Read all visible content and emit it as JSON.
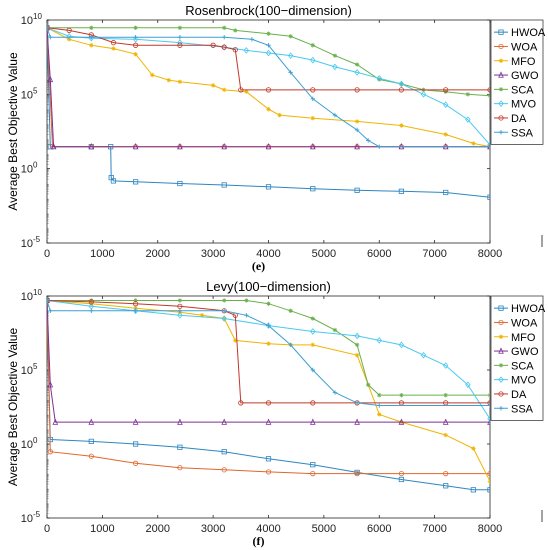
{
  "figure": {
    "labels": [
      "(e)",
      "(f)"
    ]
  },
  "chart_data": [
    {
      "type": "line",
      "title": "Rosenbrock(100−dimension)",
      "xlabel": "",
      "ylabel": "Average Best Objective Value",
      "xlim": [
        0,
        8000
      ],
      "ylim": [
        1e-05,
        10000000000.0
      ],
      "yscale": "log",
      "xticks": [
        "0",
        "1000",
        "2000",
        "3000",
        "4000",
        "5000",
        "6000",
        "7000",
        "8000"
      ],
      "yticks": [
        {
          "base": "10",
          "exp": "10"
        },
        {
          "base": "10",
          "exp": "5"
        },
        {
          "base": "10",
          "exp": "0"
        },
        {
          "base": "10",
          "exp": "-5"
        }
      ],
      "legend": "right",
      "series": [
        {
          "name": "HWOA",
          "color": "#2e86c1",
          "marker": "square",
          "x": [
            0,
            60,
            800,
            1150,
            1160,
            1200,
            1600,
            2400,
            3200,
            4000,
            4800,
            5600,
            6400,
            7200,
            8000
          ],
          "y": [
            3000000000.0,
            30,
            30,
            30,
            0.25,
            0.15,
            0.13,
            0.1,
            0.08,
            0.06,
            0.045,
            0.035,
            0.03,
            0.025,
            0.012
          ]
        },
        {
          "name": "WOA",
          "color": "#e0662c",
          "marker": "circle",
          "x": [
            0,
            100,
            800,
            1600,
            2400,
            3200,
            4000,
            4800,
            5600,
            6400,
            7200,
            8000
          ],
          "y": [
            3000000000.0,
            30,
            30,
            30,
            30,
            30,
            30,
            30,
            30,
            30,
            30,
            30
          ]
        },
        {
          "name": "MFO",
          "color": "#f0b400",
          "marker": "star",
          "x": [
            0,
            400,
            800,
            1200,
            1600,
            1900,
            2200,
            2400,
            3000,
            3200,
            3600,
            4000,
            4200,
            4800,
            5600,
            6400,
            7200,
            7700,
            8000
          ],
          "y": [
            3000000000.0,
            500000000.0,
            200000000.0,
            120000000.0,
            50000000.0,
            2000000.0,
            900000.0,
            700000.0,
            400000.0,
            200000.0,
            150000.0,
            10000.0,
            4000,
            2500,
            1500,
            800,
            200,
            50,
            30
          ]
        },
        {
          "name": "GWO",
          "color": "#7b3294",
          "marker": "triangle",
          "x": [
            0,
            60,
            120,
            800,
            1600,
            2400,
            3200,
            4000,
            4800,
            5600,
            6400,
            7200,
            8000
          ],
          "y": [
            3000000000.0,
            1000000.0,
            30,
            30,
            30,
            30,
            30,
            30,
            30,
            30,
            30,
            30,
            30
          ]
        },
        {
          "name": "SCA",
          "color": "#6ab04c",
          "marker": "star",
          "x": [
            0,
            800,
            1600,
            2400,
            3200,
            3400,
            4000,
            4400,
            4800,
            5200,
            5600,
            6000,
            6400,
            6800,
            7200,
            7600,
            8000
          ],
          "y": [
            3000000000.0,
            3000000000.0,
            3000000000.0,
            3000000000.0,
            3000000000.0,
            2000000000.0,
            1200000000.0,
            800000000.0,
            200000000.0,
            40000000.0,
            10000000.0,
            1000000.0,
            500000.0,
            200000.0,
            150000.0,
            100000.0,
            80000.0
          ]
        },
        {
          "name": "MVO",
          "color": "#48c9f0",
          "marker": "diamond",
          "x": [
            0,
            400,
            800,
            1600,
            2400,
            3200,
            3600,
            4000,
            4400,
            4800,
            5200,
            5600,
            6000,
            6400,
            6800,
            7200,
            7600,
            8000
          ],
          "y": [
            3000000000.0,
            800000000.0,
            600000000.0,
            500000000.0,
            300000000.0,
            150000000.0,
            90000000.0,
            60000000.0,
            40000000.0,
            20000000.0,
            7000000.0,
            3000000.0,
            1200000.0,
            500000.0,
            100000.0,
            20000.0,
            2000,
            40
          ]
        },
        {
          "name": "DA",
          "color": "#c0392b",
          "marker": "circle",
          "x": [
            0,
            400,
            800,
            1200,
            1600,
            2400,
            3000,
            3200,
            3400,
            3500,
            4000,
            4800,
            5600,
            6400,
            7200,
            8000
          ],
          "y": [
            3000000000.0,
            2000000000.0,
            1000000000.0,
            300000000.0,
            200000000.0,
            200000000.0,
            200000000.0,
            150000000.0,
            100000000.0,
            200000.0,
            200000.0,
            200000.0,
            200000.0,
            200000.0,
            200000.0,
            200000.0
          ]
        },
        {
          "name": "SSA",
          "color": "#3d9fd3",
          "marker": "plus",
          "x": [
            0,
            60,
            800,
            1600,
            2400,
            3200,
            3700,
            4000,
            4400,
            4800,
            5200,
            5600,
            5800,
            6000,
            8000
          ],
          "y": [
            3000000000.0,
            700000000.0,
            700000000.0,
            700000000.0,
            700000000.0,
            700000000.0,
            500000000.0,
            200000000.0,
            3000000.0,
            50000.0,
            4000,
            400,
            80,
            30,
            30
          ]
        }
      ]
    },
    {
      "type": "line",
      "title": "Levy(100−dimension)",
      "xlabel": "",
      "ylabel": "Average Best Objective Value",
      "xlim": [
        0,
        8000
      ],
      "ylim": [
        1e-05,
        10000000000.0
      ],
      "yscale": "log",
      "xticks": [
        "0",
        "1000",
        "2000",
        "3000",
        "4000",
        "5000",
        "6000",
        "7000",
        "8000"
      ],
      "yticks": [
        {
          "base": "10",
          "exp": "10"
        },
        {
          "base": "10",
          "exp": "5"
        },
        {
          "base": "10",
          "exp": "0"
        },
        {
          "base": "10",
          "exp": "-5"
        }
      ],
      "legend": "right",
      "series": [
        {
          "name": "HWOA",
          "color": "#2e86c1",
          "marker": "square",
          "x": [
            0,
            60,
            800,
            1600,
            2400,
            3200,
            4000,
            4800,
            5600,
            6400,
            7200,
            7700,
            8000
          ],
          "y": [
            5000000000.0,
            2,
            1.5,
            1,
            0.6,
            0.3,
            0.1,
            0.04,
            0.012,
            0.004,
            0.0015,
            0.0008,
            0.0008
          ]
        },
        {
          "name": "WOA",
          "color": "#e0662c",
          "marker": "circle",
          "x": [
            0,
            60,
            800,
            1600,
            2400,
            3200,
            4000,
            4800,
            5600,
            6400,
            7200,
            8000
          ],
          "y": [
            5000000000.0,
            0.3,
            0.15,
            0.05,
            0.025,
            0.018,
            0.013,
            0.01,
            0.01,
            0.01,
            0.01,
            0.01
          ]
        },
        {
          "name": "MFO",
          "color": "#f0b400",
          "marker": "star",
          "x": [
            0,
            800,
            1600,
            2400,
            2800,
            3200,
            3400,
            4000,
            4400,
            4800,
            5600,
            6000,
            6400,
            7200,
            7700,
            8000
          ],
          "y": [
            5000000000.0,
            3000000000.0,
            1500000000.0,
            800000000.0,
            500000000.0,
            300000000.0,
            10000000.0,
            6000000.0,
            5000000.0,
            5000000.0,
            1000000.0,
            100,
            30,
            4,
            0.5,
            0.003
          ]
        },
        {
          "name": "GWO",
          "color": "#7b3294",
          "marker": "triangle",
          "x": [
            0,
            60,
            150,
            800,
            1600,
            2400,
            3200,
            4000,
            4800,
            5600,
            6400,
            7200,
            8000
          ],
          "y": [
            5000000000.0,
            10000.0,
            30,
            30,
            30,
            30,
            30,
            30,
            30,
            30,
            30,
            30,
            30
          ]
        },
        {
          "name": "SCA",
          "color": "#6ab04c",
          "marker": "star",
          "x": [
            0,
            800,
            1600,
            2400,
            3200,
            3600,
            4000,
            4400,
            4800,
            5200,
            5600,
            5800,
            6000,
            6400,
            7200,
            8000
          ],
          "y": [
            5000000000.0,
            5000000000.0,
            5000000000.0,
            5000000000.0,
            5000000000.0,
            5000000000.0,
            3000000000.0,
            1000000000.0,
            300000000.0,
            50000000.0,
            5000000.0,
            10000.0,
            2000,
            2000,
            2000,
            2000
          ]
        },
        {
          "name": "MVO",
          "color": "#48c9f0",
          "marker": "diamond",
          "x": [
            0,
            800,
            1600,
            2400,
            3200,
            4000,
            4800,
            5600,
            6000,
            6400,
            6800,
            7200,
            7600,
            8000
          ],
          "y": [
            5000000000.0,
            2000000000.0,
            1000000000.0,
            500000000.0,
            300000000.0,
            100000000.0,
            40000000.0,
            20000000.0,
            10000000.0,
            5000000.0,
            1000000.0,
            200000.0,
            10000.0,
            50
          ]
        },
        {
          "name": "DA",
          "color": "#c0392b",
          "marker": "circle",
          "x": [
            0,
            800,
            1600,
            2400,
            3200,
            3400,
            3500,
            4000,
            4800,
            5600,
            6400,
            7200,
            8000
          ],
          "y": [
            5000000000.0,
            4000000000.0,
            3000000000.0,
            2000000000.0,
            1000000000.0,
            500000000.0,
            600,
            600,
            600,
            600,
            600,
            600,
            600
          ]
        },
        {
          "name": "SSA",
          "color": "#3d9fd3",
          "marker": "plus",
          "x": [
            0,
            60,
            800,
            1600,
            2400,
            3200,
            3600,
            4000,
            4400,
            4800,
            5200,
            5600,
            6000,
            8000
          ],
          "y": [
            5000000000.0,
            1000000000.0,
            1000000000.0,
            1000000000.0,
            1000000000.0,
            1000000000.0,
            500000000.0,
            100000000.0,
            5000000.0,
            100000.0,
            3000,
            600,
            400,
            400
          ]
        }
      ]
    }
  ]
}
